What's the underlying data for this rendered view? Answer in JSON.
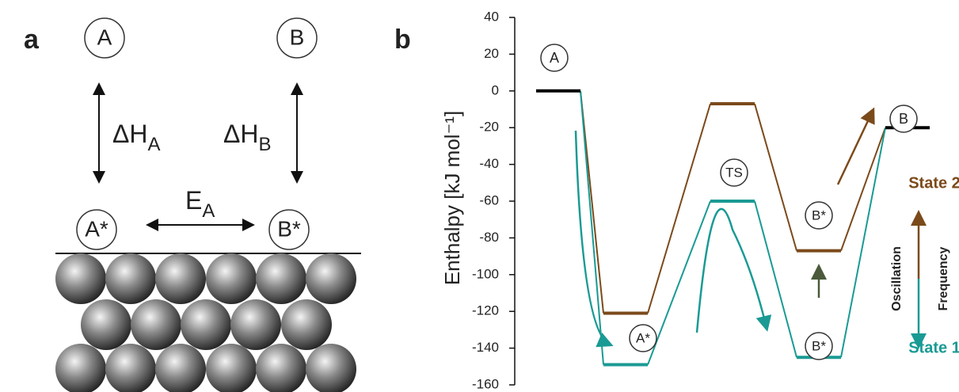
{
  "panel_a": {
    "label": "a",
    "species": [
      "A",
      "B",
      "A*",
      "B*"
    ],
    "dH_A": {
      "text": "ΔH",
      "sub": "A"
    },
    "dH_B": {
      "text": "ΔH",
      "sub": "B"
    },
    "E_A": {
      "text": "E",
      "sub": "A"
    }
  },
  "chart_data": {
    "type": "energy-levels",
    "panel_label": "b",
    "y_label": "Enthalpy [kJ mol⁻¹]",
    "ylim": [
      -160,
      40
    ],
    "yticks": [
      -160,
      -140,
      -120,
      -100,
      -80,
      -60,
      -40,
      -20,
      0,
      20,
      40
    ],
    "gas_levels": [
      {
        "label": "A",
        "value": 0
      },
      {
        "label": "B",
        "value": -20
      }
    ],
    "gas_color": "#000000",
    "series": [
      {
        "name": "State 2",
        "color": "#7b4a1b",
        "values": [
          -121,
          -7,
          -87
        ]
      },
      {
        "name": "State 1",
        "color": "#1a9a94",
        "values": [
          -149,
          -60,
          -145
        ]
      }
    ],
    "annotations": [
      "A*",
      "TS",
      "B*",
      "B*"
    ],
    "oscillation_label": [
      "Oscillation",
      "Frequency"
    ]
  }
}
